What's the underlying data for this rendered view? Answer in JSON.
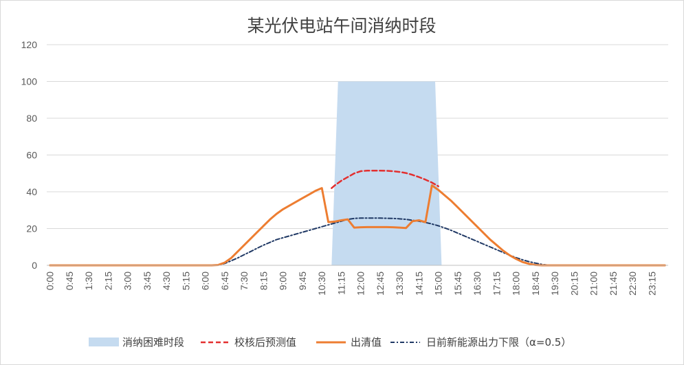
{
  "chart_data": {
    "type": "line",
    "title": "某光伏电站午间消纳时段",
    "xlabel": "",
    "ylabel": "",
    "ylim": [
      0,
      120
    ],
    "yticks": [
      0,
      20,
      40,
      60,
      80,
      100,
      120
    ],
    "grid": true,
    "legend_position": "bottom",
    "x_step_minutes": 15,
    "x_count": 96,
    "x_tick_labels": [
      "0:00",
      "0:45",
      "1:30",
      "2:15",
      "3:00",
      "3:45",
      "4:30",
      "5:15",
      "6:00",
      "6:45",
      "7:30",
      "8:15",
      "9:00",
      "9:45",
      "10:30",
      "11:15",
      "12:00",
      "12:45",
      "13:30",
      "14:15",
      "15:00",
      "15:45",
      "16:30",
      "17:15",
      "18:00",
      "18:45",
      "19:30",
      "20:15",
      "21:00",
      "21:45",
      "22:30",
      "23:15"
    ],
    "shaded_band": {
      "name": "消纳困难时段",
      "color": "#c5dbf0",
      "polygon": [
        [
          43.5,
          0
        ],
        [
          44.5,
          100
        ],
        [
          59.5,
          100
        ],
        [
          60.5,
          0
        ]
      ]
    },
    "series": [
      {
        "name": "校核后预测值",
        "color": "#e32f2f",
        "style": "dashed",
        "points": [
          [
            43.5,
            42
          ],
          [
            44,
            43.5
          ],
          [
            45,
            46
          ],
          [
            46,
            48
          ],
          [
            47,
            50
          ],
          [
            48,
            51.2
          ],
          [
            49,
            51.5
          ],
          [
            50,
            51.5
          ],
          [
            51,
            51.5
          ],
          [
            52,
            51.4
          ],
          [
            53,
            51.2
          ],
          [
            54,
            50.8
          ],
          [
            55,
            50.2
          ],
          [
            56,
            49.2
          ],
          [
            57,
            48
          ],
          [
            58,
            46.6
          ],
          [
            59,
            45
          ],
          [
            60,
            43
          ]
        ]
      },
      {
        "name": "出清值",
        "color": "#ed7d31",
        "style": "solid",
        "points": [
          [
            0,
            0
          ],
          [
            5,
            0
          ],
          [
            10,
            0
          ],
          [
            15,
            0
          ],
          [
            20,
            0
          ],
          [
            25,
            0
          ],
          [
            26,
            0.2
          ],
          [
            27,
            1.5
          ],
          [
            28,
            4
          ],
          [
            29,
            7.5
          ],
          [
            30,
            11
          ],
          [
            31,
            14.5
          ],
          [
            32,
            18
          ],
          [
            33,
            21.5
          ],
          [
            34,
            25
          ],
          [
            35,
            28
          ],
          [
            36,
            30.5
          ],
          [
            37,
            32.5
          ],
          [
            38,
            34.5
          ],
          [
            39,
            36.5
          ],
          [
            40,
            38.5
          ],
          [
            41,
            40.5
          ],
          [
            42,
            42
          ],
          [
            43,
            23.5
          ],
          [
            44,
            23.8
          ],
          [
            45,
            24.5
          ],
          [
            46,
            25
          ],
          [
            47,
            20.5
          ],
          [
            48,
            20.7
          ],
          [
            49,
            20.8
          ],
          [
            50,
            20.8
          ],
          [
            51,
            20.8
          ],
          [
            52,
            20.8
          ],
          [
            53,
            20.7
          ],
          [
            54,
            20.5
          ],
          [
            55,
            20.3
          ],
          [
            56,
            24
          ],
          [
            57,
            24.5
          ],
          [
            58,
            23.5
          ],
          [
            59,
            43.5
          ],
          [
            60,
            41
          ],
          [
            61,
            38
          ],
          [
            62,
            35
          ],
          [
            63,
            31.5
          ],
          [
            64,
            28
          ],
          [
            65,
            24.5
          ],
          [
            66,
            21
          ],
          [
            67,
            17.5
          ],
          [
            68,
            14
          ],
          [
            69,
            11
          ],
          [
            70,
            8
          ],
          [
            71,
            5.5
          ],
          [
            72,
            3.5
          ],
          [
            73,
            1.8
          ],
          [
            74,
            0.8
          ],
          [
            75,
            0.2
          ],
          [
            76,
            0
          ],
          [
            80,
            0
          ],
          [
            85,
            0
          ],
          [
            90,
            0
          ],
          [
            95,
            0
          ]
        ]
      },
      {
        "name": "日前新能源出力下限（α=0.5）",
        "color": "#1f3864",
        "style": "dashdot",
        "points": [
          [
            0,
            0
          ],
          [
            5,
            0
          ],
          [
            10,
            0
          ],
          [
            15,
            0
          ],
          [
            20,
            0
          ],
          [
            25,
            0
          ],
          [
            26,
            0.2
          ],
          [
            27,
            1
          ],
          [
            28,
            2.5
          ],
          [
            29,
            4
          ],
          [
            30,
            5.8
          ],
          [
            31,
            7.5
          ],
          [
            32,
            9.3
          ],
          [
            33,
            11
          ],
          [
            34,
            12.5
          ],
          [
            35,
            14
          ],
          [
            36,
            15
          ],
          [
            37,
            16
          ],
          [
            38,
            17
          ],
          [
            39,
            18
          ],
          [
            40,
            19
          ],
          [
            41,
            20
          ],
          [
            42,
            21
          ],
          [
            43,
            22
          ],
          [
            44,
            23
          ],
          [
            45,
            24
          ],
          [
            46,
            25
          ],
          [
            47,
            25.5
          ],
          [
            48,
            25.7
          ],
          [
            49,
            25.7
          ],
          [
            50,
            25.7
          ],
          [
            51,
            25.7
          ],
          [
            52,
            25.6
          ],
          [
            53,
            25.5
          ],
          [
            54,
            25.3
          ],
          [
            55,
            25
          ],
          [
            56,
            24.5
          ],
          [
            57,
            24
          ],
          [
            58,
            23.3
          ],
          [
            59,
            22.5
          ],
          [
            60,
            21.5
          ],
          [
            61,
            20.3
          ],
          [
            62,
            19
          ],
          [
            63,
            17.5
          ],
          [
            64,
            16
          ],
          [
            65,
            14.5
          ],
          [
            66,
            13
          ],
          [
            67,
            11.5
          ],
          [
            68,
            10
          ],
          [
            69,
            8.5
          ],
          [
            70,
            7
          ],
          [
            71,
            5.5
          ],
          [
            72,
            4.2
          ],
          [
            73,
            3
          ],
          [
            74,
            2
          ],
          [
            75,
            1.2
          ],
          [
            76,
            0.5
          ],
          [
            77,
            0.1
          ],
          [
            78,
            0
          ],
          [
            80,
            0
          ],
          [
            85,
            0
          ],
          [
            90,
            0
          ],
          [
            95,
            0
          ]
        ]
      }
    ]
  }
}
